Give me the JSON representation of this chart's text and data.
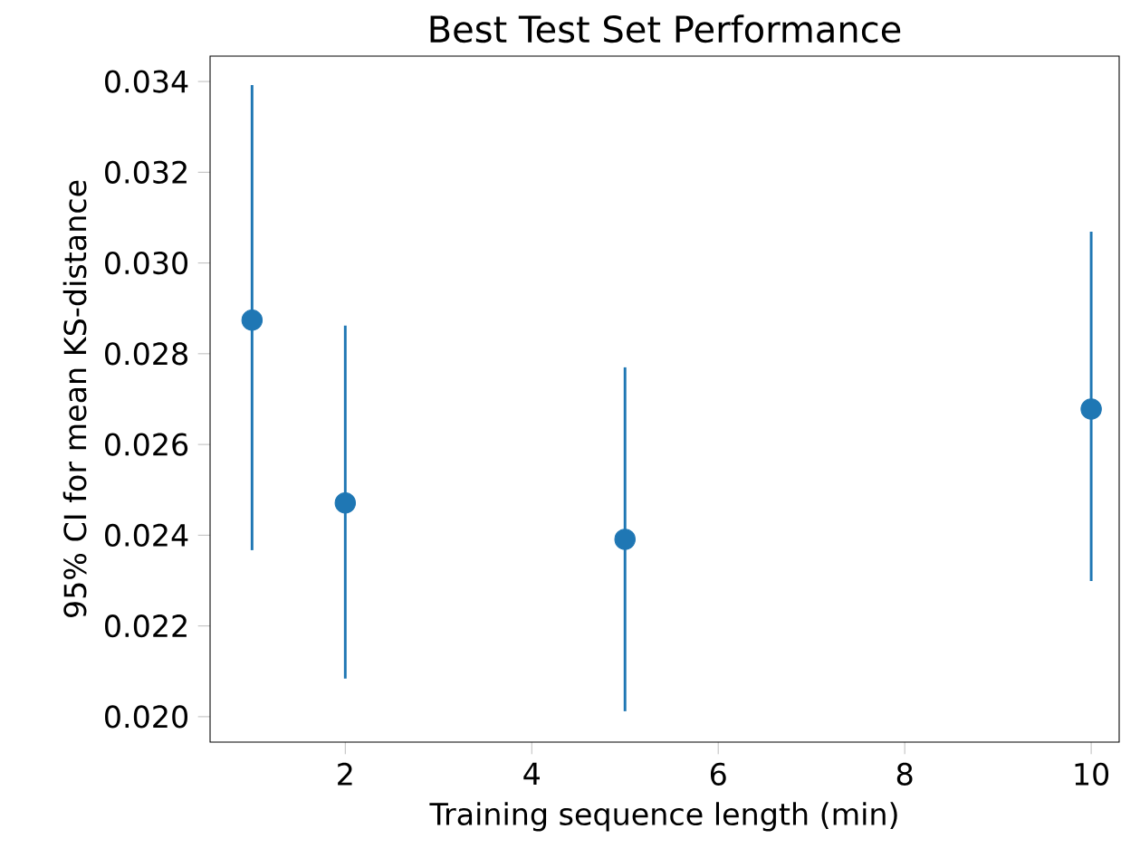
{
  "chart_data": {
    "type": "scatter",
    "title": "Best Test Set Performance",
    "xlabel": "Training sequence length (min)",
    "ylabel": "95% CI for mean KS-distance",
    "x": [
      1,
      2,
      5,
      10
    ],
    "values": [
      0.02874,
      0.02471,
      0.02391,
      0.02678
    ],
    "errors": [
      [
        0.02367,
        0.03392
      ],
      [
        0.02084,
        0.02862
      ],
      [
        0.02012,
        0.0277
      ],
      [
        0.02299,
        0.03069
      ]
    ],
    "color": "#1f77b4",
    "xlim": [
      0.55,
      10.3
    ],
    "xticks": [
      2,
      4,
      6,
      8,
      10
    ],
    "ylim": [
      0.01944,
      0.03456
    ],
    "yticks": [
      {
        "value": 0.02,
        "label": "0.020"
      },
      {
        "value": 0.022,
        "label": "0.022"
      },
      {
        "value": 0.024,
        "label": "0.024"
      },
      {
        "value": 0.026,
        "label": "0.026"
      },
      {
        "value": 0.028,
        "label": "0.028"
      },
      {
        "value": 0.03,
        "label": "0.030"
      },
      {
        "value": 0.032,
        "label": "0.032"
      },
      {
        "value": 0.034,
        "label": "0.034"
      }
    ],
    "grid": false
  }
}
